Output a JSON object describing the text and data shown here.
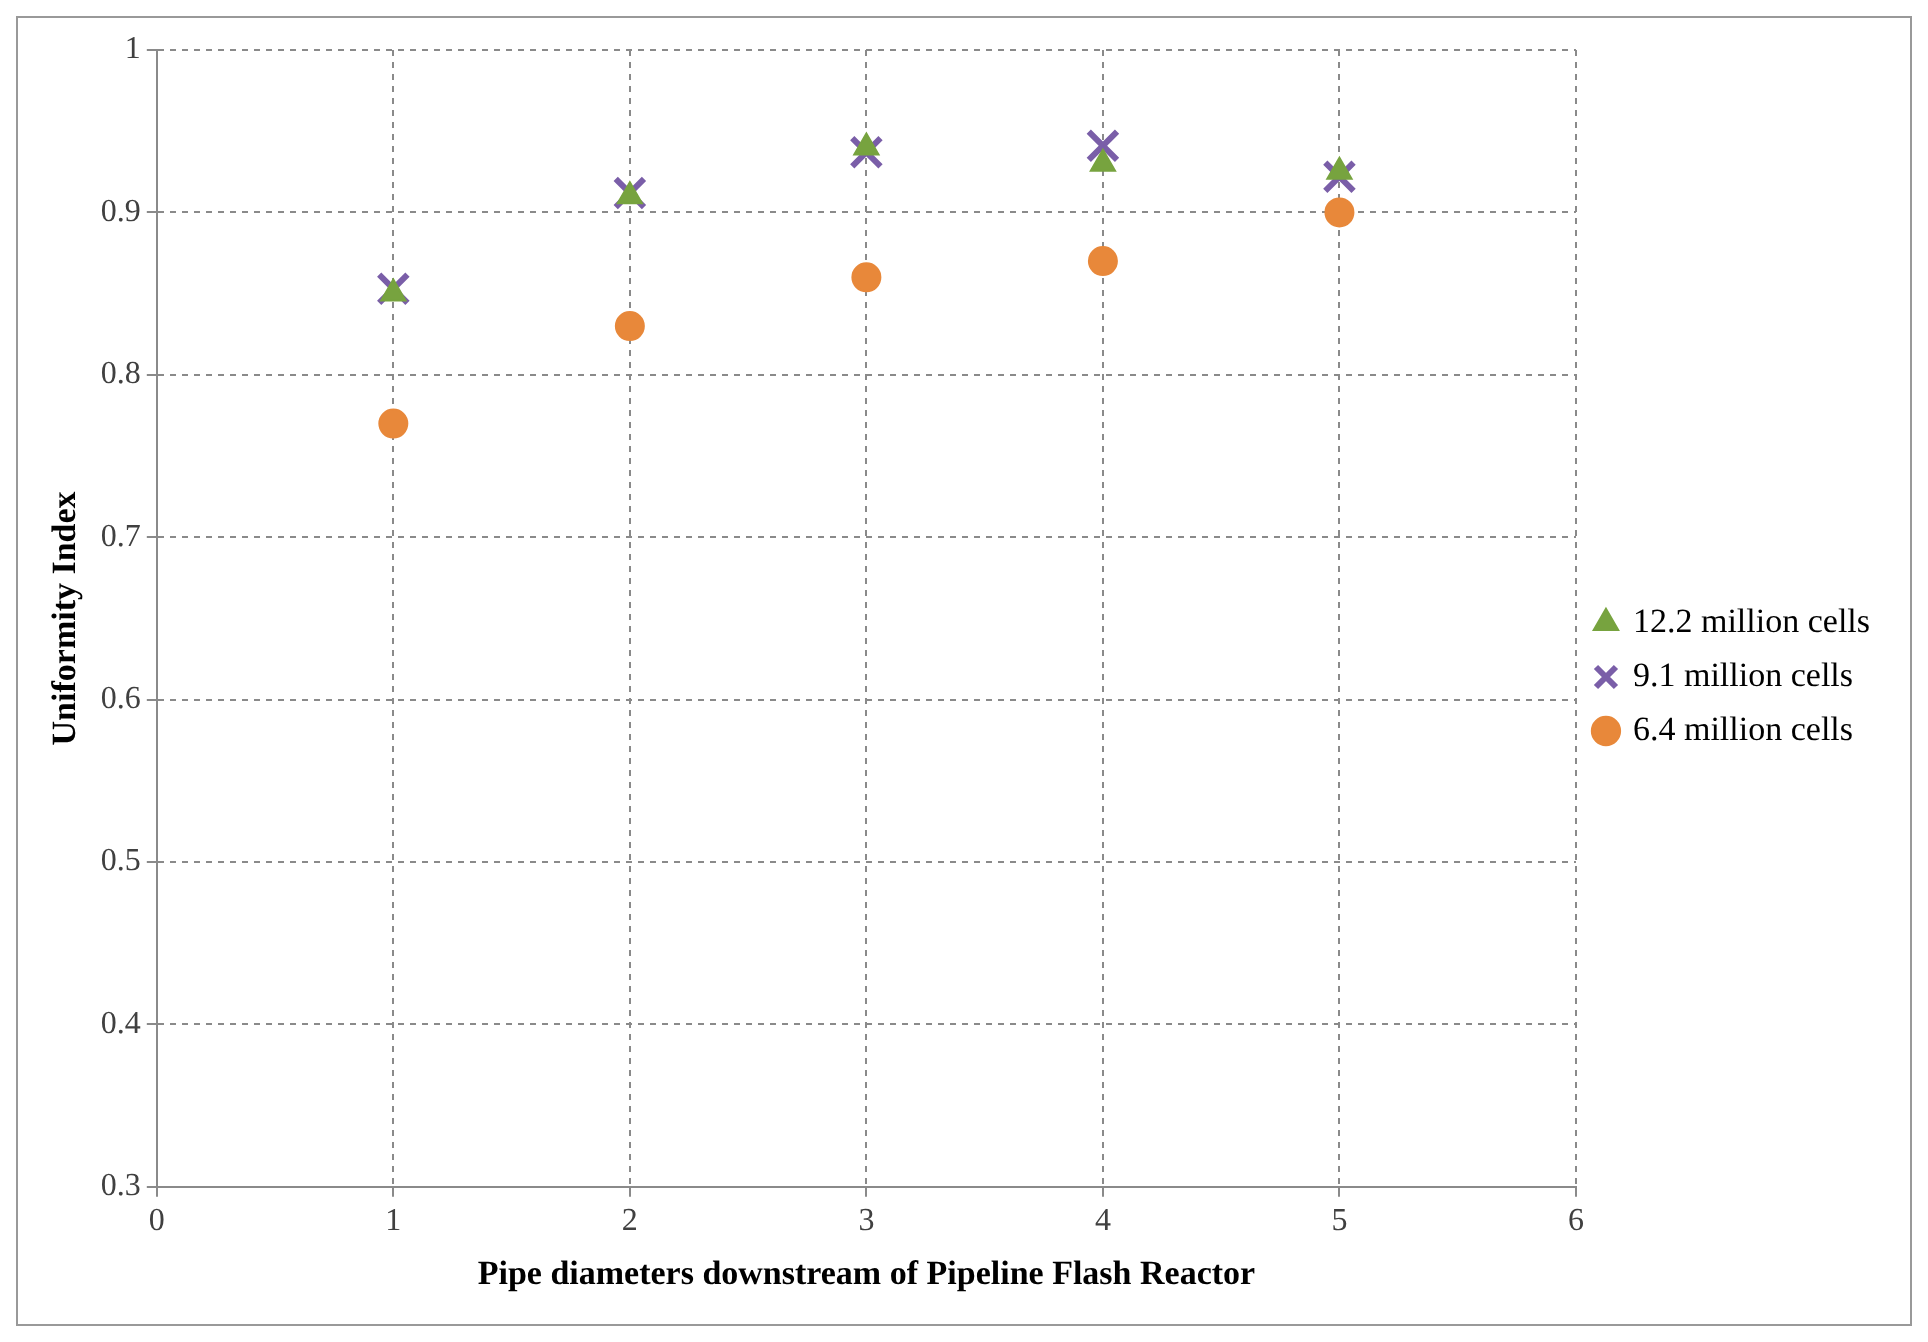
{
  "chart_data": {
    "type": "scatter",
    "xlabel": "Pipe diameters downstream of Pipeline Flash Reactor",
    "ylabel": "Uniformity Index",
    "x": [
      1,
      2,
      3,
      4,
      5
    ],
    "series": [
      {
        "name": "12.2 million cells",
        "color": "#77a33f",
        "marker": "triangle",
        "values": [
          0.85,
          0.91,
          0.94,
          0.93,
          0.925
        ]
      },
      {
        "name": "9.1 million cells",
        "color": "#7a5ea8",
        "marker": "cross",
        "values": [
          0.853,
          0.912,
          0.937,
          0.941,
          0.922
        ]
      },
      {
        "name": "6.4 million cells",
        "color": "#e8883a",
        "marker": "circle",
        "values": [
          0.77,
          0.83,
          0.86,
          0.87,
          0.9
        ]
      }
    ],
    "xlim": [
      0,
      6
    ],
    "xticks": [
      0,
      1,
      2,
      3,
      4,
      5,
      6
    ],
    "ylim": [
      0.3,
      1
    ],
    "yticks": [
      0.3,
      0.4,
      0.5,
      0.6,
      0.7,
      0.8,
      0.9,
      1
    ],
    "grid": true,
    "legend": "right"
  }
}
